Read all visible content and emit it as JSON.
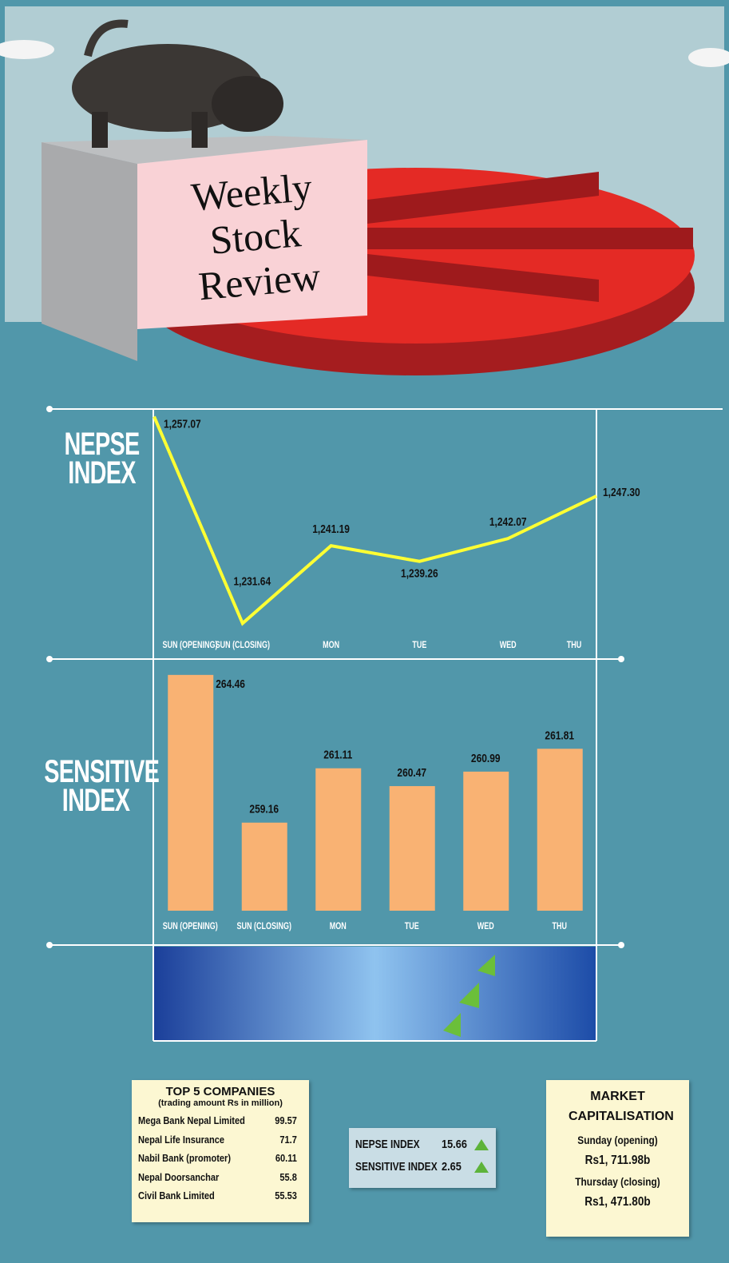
{
  "header": {
    "title": "Weekly Stock Review"
  },
  "chart_data": [
    {
      "type": "line",
      "title": "NEPSE INDEX",
      "categories": [
        "SUN (OPENING)",
        "SUN (CLOSING)",
        "MON",
        "TUE",
        "WED",
        "THU"
      ],
      "values": [
        1257.07,
        1231.64,
        1241.19,
        1239.26,
        1242.07,
        1247.3
      ],
      "value_labels": [
        "1,257.07",
        "1,231.64",
        "1,241.19",
        "1,239.26",
        "1,242.07",
        "1,247.30"
      ],
      "color": "#ffff33",
      "ylim": [
        1230,
        1258
      ]
    },
    {
      "type": "bar",
      "title": "SENSITIVE INDEX",
      "categories": [
        "SUN (OPENING)",
        "SUN (CLOSING)",
        "MON",
        "TUE",
        "WED",
        "THU"
      ],
      "values": [
        264.46,
        259.16,
        261.11,
        260.47,
        260.99,
        261.81
      ],
      "color": "#f9b273",
      "ylim": [
        256,
        265
      ]
    }
  ],
  "top_companies": {
    "title": "TOP 5 COMPANIES",
    "subtitle": "(trading amount Rs in million)",
    "rows": [
      [
        "Mega Bank Nepal Limited",
        99.57
      ],
      [
        "Nepal Life Insurance",
        71.7
      ],
      [
        "Nabil Bank (promoter)",
        60.11
      ],
      [
        "Nepal Doorsanchar",
        55.8
      ],
      [
        "Civil Bank Limited",
        55.53
      ]
    ]
  },
  "index_change": {
    "rows": [
      [
        "NEPSE INDEX",
        15.66
      ],
      [
        "SENSITIVE INDEX",
        2.65
      ]
    ]
  },
  "market_cap": {
    "title": "MARKET CAPITALISATION",
    "items": [
      "Sunday (opening)",
      "Rs1, 711.98b",
      "Thursday (closing)",
      "Rs1, 471.80b"
    ]
  }
}
